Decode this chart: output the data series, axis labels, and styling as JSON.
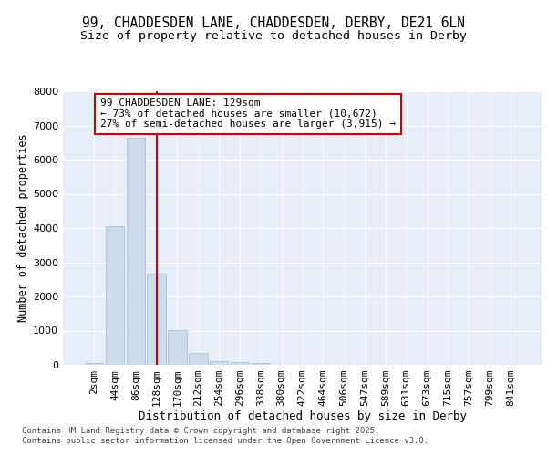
{
  "title1": "99, CHADDESDEN LANE, CHADDESDEN, DERBY, DE21 6LN",
  "title2": "Size of property relative to detached houses in Derby",
  "xlabel": "Distribution of detached houses by size in Derby",
  "ylabel": "Number of detached properties",
  "categories": [
    "2sqm",
    "44sqm",
    "86sqm",
    "128sqm",
    "170sqm",
    "212sqm",
    "254sqm",
    "296sqm",
    "338sqm",
    "380sqm",
    "422sqm",
    "464sqm",
    "506sqm",
    "547sqm",
    "589sqm",
    "631sqm",
    "673sqm",
    "715sqm",
    "757sqm",
    "799sqm",
    "841sqm"
  ],
  "bar_heights": [
    60,
    4050,
    6630,
    2680,
    1010,
    340,
    120,
    90,
    60,
    0,
    0,
    0,
    0,
    0,
    0,
    0,
    0,
    0,
    0,
    0,
    0
  ],
  "bar_color": "#ccdcec",
  "bar_edgecolor": "#aec8dc",
  "vline_x_index": 3,
  "vline_color": "#cc0000",
  "annotation_text": "99 CHADDESDEN LANE: 129sqm\n← 73% of detached houses are smaller (10,672)\n27% of semi-detached houses are larger (3,915) →",
  "annotation_box_color": "#cc0000",
  "ylim": [
    0,
    8000
  ],
  "yticks": [
    0,
    1000,
    2000,
    3000,
    4000,
    5000,
    6000,
    7000,
    8000
  ],
  "bg_color": "#e8eef8",
  "grid_color": "#ffffff",
  "footer_text": "Contains HM Land Registry data © Crown copyright and database right 2025.\nContains public sector information licensed under the Open Government Licence v3.0.",
  "title1_fontsize": 10.5,
  "title2_fontsize": 9.5,
  "xlabel_fontsize": 9,
  "ylabel_fontsize": 8.5,
  "tick_fontsize": 8,
  "annotation_fontsize": 8,
  "footer_fontsize": 6.5
}
